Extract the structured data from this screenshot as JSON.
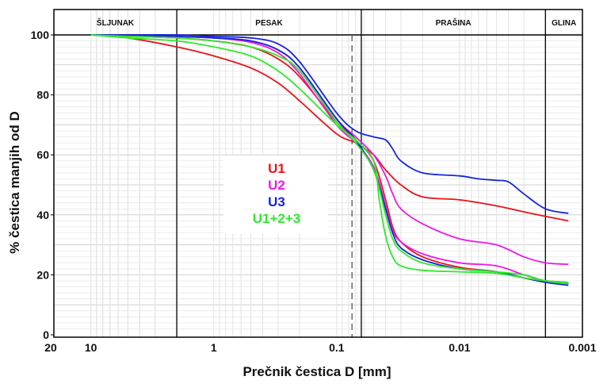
{
  "chart_data": {
    "type": "line",
    "xlabel": "Prečnik čestica D [mm]",
    "ylabel": "% čestica manjih od D",
    "x_scale": "log",
    "x_reversed": true,
    "xlim": [
      20,
      0.001
    ],
    "ylim": [
      0,
      100
    ],
    "x_tick_labels": [
      {
        "value": 20,
        "label": "20"
      },
      {
        "value": 10,
        "label": "10"
      },
      {
        "value": 1,
        "label": "1"
      },
      {
        "value": 0.1,
        "label": "0.1"
      },
      {
        "value": 0.01,
        "label": "0.01"
      },
      {
        "value": 0.001,
        "label": "0.001"
      }
    ],
    "y_tick_labels": [
      {
        "value": 0,
        "label": "0"
      },
      {
        "value": 20,
        "label": "20"
      },
      {
        "value": 40,
        "label": "40"
      },
      {
        "value": 60,
        "label": "60"
      },
      {
        "value": 80,
        "label": "80"
      },
      {
        "value": 100,
        "label": "100"
      }
    ],
    "grid": true,
    "bands": [
      {
        "label": "ŠLJUNAK",
        "from": 20,
        "to": 2
      },
      {
        "label": "PESAK",
        "from": 2,
        "to": 0.063
      },
      {
        "label": "PRAŠINA",
        "from": 0.063,
        "to": 0.002
      },
      {
        "label": "GLINA",
        "from": 0.002,
        "to": 0.001
      }
    ],
    "reference_line": {
      "x": 0.075,
      "style": "dashed"
    },
    "legend_position": "center-left",
    "series": [
      {
        "name": "U1",
        "color": "#e8141b",
        "x": [
          10,
          5,
          2,
          1,
          0.5,
          0.3,
          0.2,
          0.1,
          0.07,
          0.05,
          0.04,
          0.03,
          0.02,
          0.01,
          0.005,
          0.003,
          0.002,
          0.0013
        ],
        "y": [
          100,
          99,
          96,
          93,
          89,
          84,
          78,
          67,
          64,
          60,
          55,
          50,
          46,
          45,
          43,
          41,
          39.5,
          38
        ]
      },
      {
        "name": "U1",
        "color": "#e8141b",
        "x": [
          10,
          5,
          2,
          1,
          0.5,
          0.3,
          0.2,
          0.1,
          0.07,
          0.05,
          0.04,
          0.035,
          0.03,
          0.02,
          0.01,
          0.005,
          0.003,
          0.002,
          0.0013
        ],
        "y": [
          100,
          99.5,
          99,
          98,
          96,
          92,
          86,
          71,
          65,
          58,
          45,
          36,
          31,
          26,
          22.5,
          21,
          19,
          18,
          17.5
        ]
      },
      {
        "name": "U2",
        "color": "#ec19e4",
        "x": [
          10,
          5,
          2,
          1,
          0.5,
          0.3,
          0.2,
          0.1,
          0.07,
          0.05,
          0.04,
          0.035,
          0.03,
          0.02,
          0.01,
          0.005,
          0.003,
          0.002,
          0.0013
        ],
        "y": [
          100,
          100,
          99.5,
          99,
          98,
          95,
          89,
          72,
          66,
          60,
          53,
          47,
          42,
          37,
          32,
          30,
          26,
          24,
          23.5
        ]
      },
      {
        "name": "U2",
        "color": "#ec19e4",
        "x": [
          10,
          5,
          2,
          1,
          0.5,
          0.3,
          0.2,
          0.1,
          0.07,
          0.05,
          0.04,
          0.035,
          0.03,
          0.02,
          0.01,
          0.005,
          0.003,
          0.002,
          0.0013
        ],
        "y": [
          100,
          100,
          99.5,
          99,
          97.5,
          94,
          87,
          70,
          64,
          56,
          43,
          35,
          31,
          27,
          24,
          23,
          20,
          18,
          17
        ]
      },
      {
        "name": "U3",
        "color": "#1626d6",
        "x": [
          10,
          5,
          2,
          1,
          0.5,
          0.3,
          0.2,
          0.1,
          0.07,
          0.05,
          0.04,
          0.035,
          0.03,
          0.02,
          0.01,
          0.007,
          0.005,
          0.004,
          0.003,
          0.002,
          0.0013
        ],
        "y": [
          100,
          100,
          100,
          99.5,
          99,
          97,
          91,
          74,
          68,
          66,
          65,
          62,
          58,
          54,
          53,
          52,
          51.5,
          51,
          47,
          42,
          40.5
        ]
      },
      {
        "name": "U3",
        "color": "#1626d6",
        "x": [
          10,
          5,
          2,
          1,
          0.5,
          0.3,
          0.2,
          0.1,
          0.07,
          0.05,
          0.04,
          0.035,
          0.03,
          0.02,
          0.01,
          0.005,
          0.003,
          0.002,
          0.0013
        ],
        "y": [
          100,
          100,
          99.5,
          99,
          98,
          95,
          89,
          72,
          65,
          55,
          42,
          34,
          29,
          25,
          22,
          21,
          19,
          17.5,
          16.5
        ]
      },
      {
        "name": "U1+2+3",
        "color": "#2fe82c",
        "x": [
          10,
          5,
          2,
          1,
          0.5,
          0.3,
          0.2,
          0.1,
          0.07,
          0.05,
          0.045,
          0.04,
          0.035,
          0.03,
          0.02,
          0.01,
          0.005,
          0.003,
          0.002,
          0.0013
        ],
        "y": [
          100,
          99,
          98,
          96,
          93,
          88,
          82,
          70,
          65,
          58,
          45,
          33,
          26,
          23,
          21.5,
          21,
          20.5,
          19,
          18,
          17.5
        ]
      },
      {
        "name": "U1+2+3",
        "color": "#2fe82c",
        "x": [
          10,
          5,
          2,
          1,
          0.5,
          0.3,
          0.2,
          0.1,
          0.07,
          0.05,
          0.04,
          0.035,
          0.03,
          0.02,
          0.01,
          0.005,
          0.003,
          0.002,
          0.0013
        ],
        "y": [
          100,
          99.5,
          99,
          98,
          96,
          93,
          88,
          71,
          64,
          55,
          40,
          32,
          28,
          24,
          22,
          21,
          20,
          18,
          17
        ]
      }
    ],
    "legend": [
      {
        "label": "U1",
        "color": "#e8141b"
      },
      {
        "label": "U2",
        "color": "#ec19e4"
      },
      {
        "label": "U3",
        "color": "#1626d6"
      },
      {
        "label": "U1+2+3",
        "color": "#2fe82c"
      }
    ]
  }
}
